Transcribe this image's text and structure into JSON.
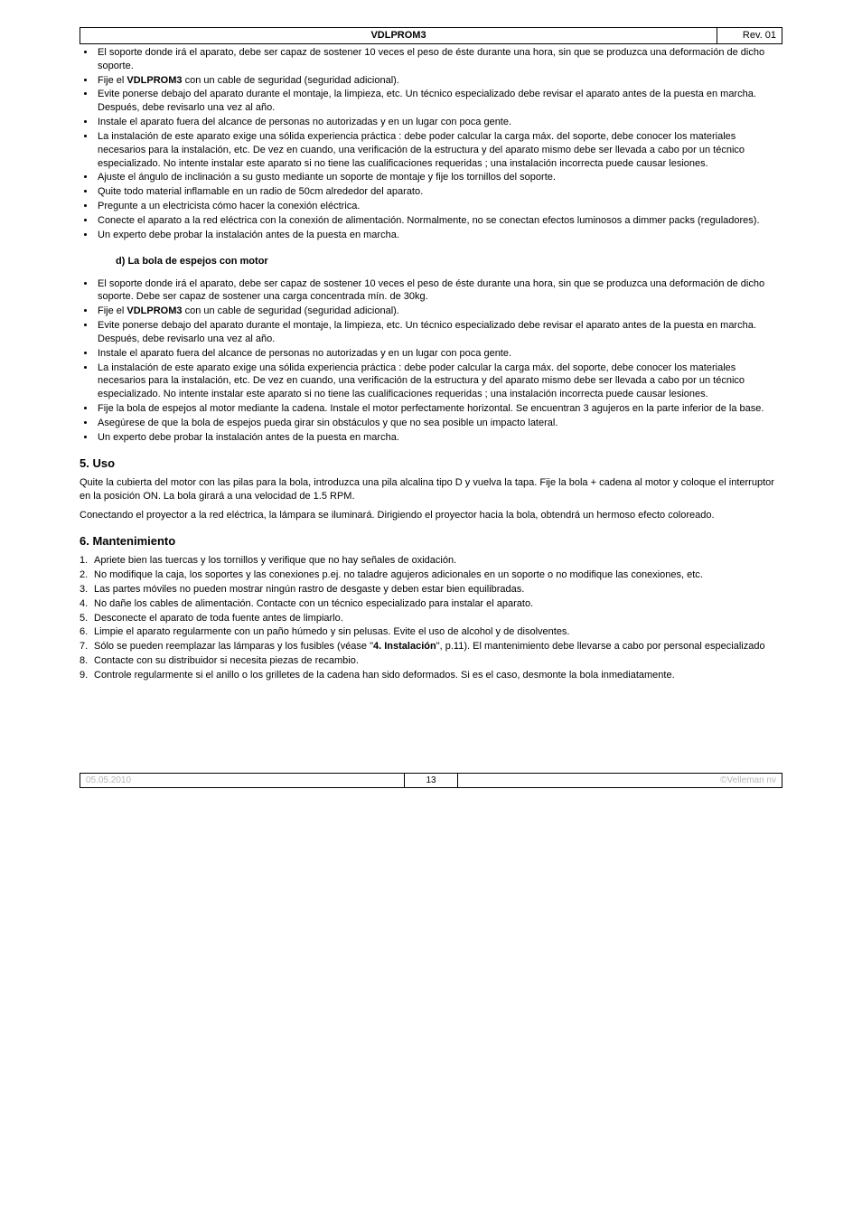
{
  "header": {
    "title": "VDLPROM3",
    "rev": "Rev. 01"
  },
  "list1": [
    "El soporte donde irá el aparato, debe ser capaz de sostener 10 veces el peso de éste durante una hora, sin que se produzca una deformación de dicho soporte.",
    "Fije el <b>VDLPROM3</b> con un cable de seguridad (seguridad adicional).",
    "Evite ponerse debajo del aparato durante el montaje, la limpieza, etc. Un técnico especializado debe revisar el aparato antes de la puesta en marcha. Después, debe revisarlo una vez al año.",
    "Instale el aparato fuera del alcance de personas no autorizadas y en un lugar con poca gente.",
    "La instalación de este aparato exige una sólida experiencia práctica : debe poder calcular la carga máx. del soporte, debe conocer los materiales necesarios para la instalación, etc. De vez en cuando, una verificación de la estructura y del aparato mismo debe ser llevada a cabo por un técnico especializado. No intente instalar este aparato si no tiene las cualificaciones requeridas ; una instalación incorrecta puede causar lesiones.",
    "Ajuste el ángulo de inclinación a su gusto mediante un soporte de montaje y fije los tornillos del soporte.",
    "Quite todo material inflamable en un radio de 50cm alrededor del aparato.",
    "Pregunte a un electricista cómo hacer la conexión eléctrica.",
    "Conecte el aparato a la red eléctrica con la conexión de alimentación. Normalmente, no se conectan efectos luminosos a dimmer packs (reguladores).",
    "Un experto debe probar la instalación antes de la puesta en marcha."
  ],
  "subsection_d": "d)  La bola de espejos con motor",
  "list2": [
    "El soporte donde irá el aparato, debe ser capaz de sostener 10 veces el peso de éste durante una hora, sin que se produzca una deformación de dicho soporte. Debe ser capaz de sostener una carga concentrada mín. de 30kg.",
    "Fije el <b>VDLPROM3</b> con un cable de seguridad (seguridad adicional).",
    "Evite ponerse debajo del aparato durante el montaje, la limpieza, etc. Un técnico especializado debe revisar el aparato antes de la puesta en marcha. Después, debe revisarlo una vez al año.",
    "Instale el aparato fuera del alcance de personas no autorizadas y en un lugar con poca gente.",
    "La instalación de este aparato exige una sólida experiencia práctica : debe poder calcular la carga máx. del soporte, debe conocer los materiales necesarios para la instalación, etc. De vez en cuando, una verificación de la estructura y del aparato mismo debe ser llevada a cabo por un técnico especializado. No intente instalar este aparato si no tiene las cualificaciones requeridas ; una instalación incorrecta puede causar lesiones.",
    "Fije la bola de espejos al motor mediante la cadena. Instale el motor perfectamente horizontal. Se encuentran 3 agujeros en la parte inferior de la base.",
    "Asegúrese de que la bola de espejos pueda girar sin obstáculos y que no sea posible un impacto lateral.",
    "Un experto debe probar la instalación antes de la puesta en marcha."
  ],
  "section5": {
    "title": "5.  Uso",
    "p1": "Quite la cubierta del motor con las pilas para la bola, introduzca una pila alcalina tipo D y vuelva la tapa. Fije la bola + cadena al motor y coloque el interruptor en la posición ON. La bola girará a una velocidad de 1.5 RPM.",
    "p2": "Conectando el proyector a la red eléctrica, la lámpara se iluminará. Dirigiendo el proyector hacia la bola, obtendrá un hermoso efecto coloreado."
  },
  "section6": {
    "title": "6.  Mantenimiento",
    "items": [
      "Apriete bien las tuercas y los tornillos y verifique que no hay señales de oxidación.",
      "No modifique la caja, los soportes y las conexiones p.ej. no taladre agujeros adicionales en un soporte o no modifique las conexiones, etc.",
      "Las partes móviles no pueden mostrar ningún rastro de desgaste y deben estar bien equilibradas.",
      "No dañe los cables de alimentación. Contacte con un técnico especializado para instalar el aparato.",
      "Desconecte el aparato de toda fuente antes de limpiarlo.",
      "Limpie el aparato regularmente con un paño húmedo y sin pelusas. Evite el uso de alcohol y de disolventes.",
      "Sólo se pueden reemplazar las lámparas y los fusibles (véase \"<b>4. Instalación</b>\", p.11). El mantenimiento debe llevarse a cabo por personal especializado",
      "Contacte con su distribuidor si necesita piezas de recambio.",
      "Controle regularmente si el anillo o los grilletes de la cadena han sido deformados. Si es el caso, desmonte la bola inmediatamente."
    ]
  },
  "footer": {
    "date": "05.05.2010",
    "page": "13",
    "copyright": "©Velleman nv"
  }
}
